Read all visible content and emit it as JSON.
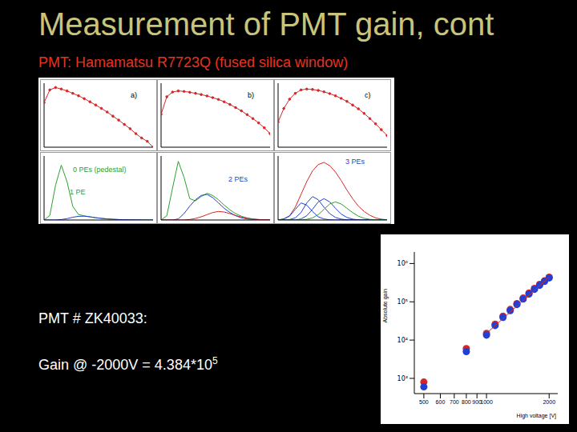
{
  "slide": {
    "title": "Measurement of PMT gain, cont",
    "subtitle": "PMT: Hamamatsu R7723Q (fused silica window)",
    "pmt_label": "PMT # ZK40033:",
    "gain_text": "Gain @ -2000V = 4.384*10",
    "gain_exponent": "5"
  },
  "chart_data": [
    {
      "type": "line",
      "log": "y",
      "tick_labels": false,
      "x": [
        0,
        1,
        2,
        3,
        4,
        5,
        6,
        7,
        8,
        9,
        10,
        11,
        12,
        13,
        14,
        15,
        16,
        17,
        18,
        19
      ],
      "xlim": [
        0,
        19
      ],
      "ylim": [
        1,
        2000
      ],
      "series": [
        {
          "color": "#d62728",
          "marker": "circle",
          "line_style": "solid",
          "values": [
            200,
            900,
            1200,
            1000,
            800,
            600,
            450,
            320,
            220,
            150,
            100,
            65,
            40,
            25,
            15,
            9,
            5,
            3,
            2,
            1
          ]
        }
      ],
      "annotations": [
        {
          "text": "a)",
          "color": "#000000"
        }
      ]
    },
    {
      "type": "line",
      "log": "y",
      "tick_labels": false,
      "x": [
        0,
        1,
        2,
        3,
        4,
        5,
        6,
        7,
        8,
        9,
        10,
        11,
        12,
        13,
        14,
        15,
        16,
        17,
        18,
        19
      ],
      "xlim": [
        0,
        19
      ],
      "ylim": [
        1,
        2000
      ],
      "series": [
        {
          "color": "#d62728",
          "marker": "circle",
          "line_style": "solid",
          "values": [
            50,
            400,
            700,
            800,
            750,
            680,
            600,
            520,
            440,
            360,
            290,
            220,
            160,
            110,
            75,
            48,
            30,
            18,
            10,
            5
          ]
        }
      ],
      "annotations": [
        {
          "text": "b)",
          "color": "#000000"
        }
      ]
    },
    {
      "type": "line",
      "log": "y",
      "tick_labels": false,
      "x": [
        0,
        1,
        2,
        3,
        4,
        5,
        6,
        7,
        8,
        9,
        10,
        11,
        12,
        13,
        14,
        15,
        16,
        17,
        18,
        19
      ],
      "xlim": [
        0,
        19
      ],
      "ylim": [
        1,
        2000
      ],
      "series": [
        {
          "color": "#d62728",
          "marker": "circle",
          "line_style": "solid",
          "values": [
            20,
            100,
            300,
            600,
            900,
            1000,
            950,
            850,
            720,
            580,
            450,
            330,
            230,
            150,
            95,
            55,
            30,
            16,
            8,
            4
          ]
        }
      ],
      "annotations": [
        {
          "text": "c)",
          "color": "#000000"
        }
      ]
    },
    {
      "type": "line",
      "tick_labels": false,
      "x": [
        0,
        1,
        2,
        3,
        4,
        5,
        6,
        7,
        8,
        9,
        10,
        11,
        12,
        13,
        14,
        15,
        16,
        17,
        18,
        19
      ],
      "xlim": [
        0,
        19
      ],
      "ylim": [
        0,
        700
      ],
      "series": [
        {
          "color": "#2ca02c",
          "line_style": "solid",
          "values": [
            0,
            50,
            380,
            600,
            420,
            150,
            60,
            45,
            35,
            25,
            18,
            12,
            8,
            5,
            3,
            2,
            1,
            0,
            0,
            0
          ]
        },
        {
          "color": "#1f3fd6",
          "line_style": "solid",
          "values": [
            0,
            0,
            0,
            5,
            15,
            30,
            40,
            42,
            35,
            25,
            18,
            12,
            8,
            5,
            3,
            2,
            1,
            0,
            0,
            0
          ]
        }
      ],
      "annotations": [
        {
          "text": "0 PEs (pedestal)",
          "color": "#2ca02c"
        },
        {
          "text": "1 PE",
          "color": "#2ca02c"
        }
      ]
    },
    {
      "type": "line",
      "tick_labels": false,
      "x": [
        0,
        1,
        2,
        3,
        4,
        5,
        6,
        7,
        8,
        9,
        10,
        11,
        12,
        13,
        14,
        15,
        16,
        17,
        18,
        19
      ],
      "xlim": [
        0,
        19
      ],
      "ylim": [
        0,
        600
      ],
      "series": [
        {
          "color": "#2ca02c",
          "line_style": "solid",
          "values": [
            0,
            40,
            300,
            550,
            400,
            200,
            180,
            220,
            250,
            230,
            190,
            140,
            95,
            60,
            35,
            20,
            10,
            5,
            2,
            0
          ]
        },
        {
          "color": "#1f3fd6",
          "line_style": "solid",
          "values": [
            0,
            0,
            0,
            10,
            60,
            130,
            190,
            230,
            240,
            210,
            160,
            110,
            70,
            40,
            20,
            10,
            5,
            2,
            1,
            0
          ]
        },
        {
          "color": "#d62728",
          "line_style": "solid",
          "values": [
            0,
            0,
            0,
            0,
            0,
            5,
            15,
            30,
            50,
            70,
            80,
            75,
            60,
            42,
            28,
            16,
            8,
            4,
            2,
            0
          ]
        }
      ],
      "annotations": [
        {
          "text": "2 PEs",
          "color": "#1f3fd6"
        }
      ]
    },
    {
      "type": "line",
      "tick_labels": false,
      "x": [
        0,
        1,
        2,
        3,
        4,
        5,
        6,
        7,
        8,
        9,
        10,
        11,
        12,
        13,
        14,
        15,
        16,
        17,
        18,
        19
      ],
      "xlim": [
        0,
        19
      ],
      "ylim": [
        0,
        300
      ],
      "series": [
        {
          "color": "#d62728",
          "line_style": "solid",
          "values": [
            0,
            5,
            20,
            60,
            120,
            180,
            230,
            260,
            270,
            255,
            225,
            185,
            140,
            100,
            65,
            40,
            22,
            10,
            4,
            1
          ]
        },
        {
          "color": "#1f3fd6",
          "line_style": "solid",
          "values": [
            0,
            5,
            18,
            50,
            80,
            70,
            40,
            15,
            5,
            1,
            0,
            0,
            0,
            0,
            0,
            0,
            0,
            0,
            0,
            0
          ]
        },
        {
          "color": "#1f3fd6",
          "line_style": "solid",
          "values": [
            0,
            0,
            2,
            10,
            35,
            80,
            110,
            95,
            60,
            30,
            12,
            4,
            1,
            0,
            0,
            0,
            0,
            0,
            0,
            0
          ]
        },
        {
          "color": "#1f3fd6",
          "line_style": "solid",
          "values": [
            0,
            0,
            0,
            0,
            5,
            20,
            50,
            85,
            100,
            85,
            55,
            28,
            12,
            4,
            1,
            0,
            0,
            0,
            0,
            0
          ]
        },
        {
          "color": "#2ca02c",
          "line_style": "solid",
          "values": [
            0,
            0,
            0,
            0,
            0,
            3,
            10,
            25,
            50,
            75,
            85,
            75,
            55,
            35,
            18,
            8,
            3,
            1,
            0,
            0
          ]
        }
      ],
      "annotations": [
        {
          "text": "3 PEs",
          "color": "#1f3fd6"
        }
      ]
    },
    {
      "type": "scatter",
      "log": true,
      "x_label": "High voltage [V]",
      "y_label": "Absolute gain",
      "xlim": [
        450,
        2200
      ],
      "xticks": [
        500,
        600,
        700,
        800,
        900,
        1000,
        2000
      ],
      "ylim": [
        400,
        2000000
      ],
      "yticks": [
        {
          "value": 1000,
          "label": "10³"
        },
        {
          "value": 10000,
          "label": "10⁴"
        },
        {
          "value": 100000,
          "label": "10⁵"
        },
        {
          "value": 1000000,
          "label": "10⁶"
        }
      ],
      "grid": false,
      "series": [
        {
          "color": "#d62728",
          "marker": "circle",
          "x": [
            500,
            800,
            1000,
            1100,
            1200,
            1300,
            1400,
            1500,
            1600,
            1700,
            1800,
            1900,
            2000
          ],
          "values": [
            800,
            6000,
            15000,
            26000,
            42000,
            63000,
            90000,
            125000,
            170000,
            225000,
            285000,
            355000,
            440000
          ]
        },
        {
          "color": "#1f3fd6",
          "marker": "circle",
          "x": [
            500,
            800,
            1000,
            1100,
            1200,
            1300,
            1400,
            1500,
            1600,
            1700,
            1800,
            1900,
            2000
          ],
          "values": [
            600,
            5000,
            13500,
            24000,
            39000,
            59000,
            85000,
            118000,
            160000,
            212000,
            270000,
            340000,
            420000
          ]
        },
        {
          "color": "#d62728",
          "line_style": "solid",
          "x": [
            1000,
            2000
          ],
          "values": [
            15000,
            440000
          ]
        }
      ]
    }
  ]
}
